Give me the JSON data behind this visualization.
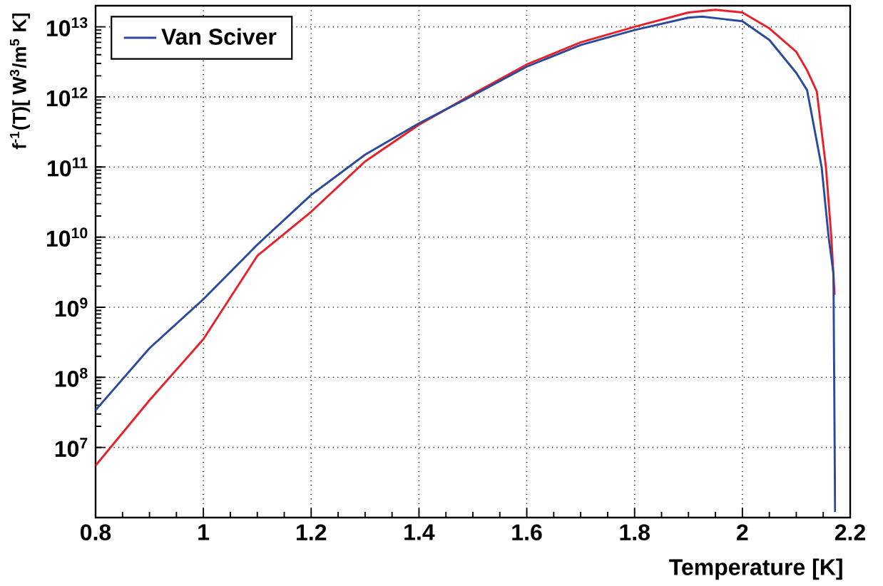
{
  "chart_data": {
    "type": "line",
    "xlabel": "Temperature [K]",
    "ylabel": "f$^{-1}$(T)[ W$^{3}$/m$^{5}$ K]",
    "log": "y",
    "grid": true,
    "legend": "top left",
    "line_style": "solid",
    "marker": "none",
    "xlim": [
      0.8,
      2.2
    ],
    "xticks": [
      0.8,
      1,
      1.2,
      1.4,
      1.6,
      1.8,
      2,
      2.2
    ],
    "ylim": [
      1000000,
      20000000000000
    ],
    "yticks": [
      {
        "value": 10000000,
        "label": "10$^{7}$"
      },
      {
        "value": 100000000,
        "label": "10$^{8}$"
      },
      {
        "value": 1000000000,
        "label": "10$^{9}$"
      },
      {
        "value": 10000000000,
        "label": "10$^{10}$"
      },
      {
        "value": 100000000000,
        "label": "10$^{11}$"
      },
      {
        "value": 1000000000000,
        "label": "10$^{12}$"
      },
      {
        "value": 10000000000000,
        "label": "10$^{13}$"
      }
    ],
    "series": [
      {
        "color": "#e8202a",
        "x": [
          0.8,
          0.9,
          1.0,
          1.1,
          1.2,
          1.3,
          1.4,
          1.5,
          1.6,
          1.7,
          1.8,
          1.9,
          1.95,
          2.0,
          2.05,
          2.1,
          2.12,
          2.138,
          2.155,
          2.165,
          2.171
        ],
        "values": [
          5500000,
          47000000,
          350000000,
          5400000000,
          23000000000,
          120000000000,
          400000000000,
          1100000000000,
          2900000000000,
          6000000000000,
          10000000000000,
          16000000000000,
          17500000000000,
          16000000000000,
          9500000000000,
          4400000000000,
          2400000000000,
          1200000000000,
          100000000000,
          10000000000,
          1500000000
        ]
      },
      {
        "name": "Van Sciver",
        "color": "#2b4a9e",
        "x": [
          0.8,
          0.9,
          1.0,
          1.1,
          1.2,
          1.3,
          1.4,
          1.5,
          1.6,
          1.7,
          1.8,
          1.9,
          1.925,
          2.0,
          2.05,
          2.1,
          2.12,
          2.147,
          2.16,
          2.169,
          2.172
        ],
        "values": [
          34000000,
          260000000,
          1300000000,
          7800000000,
          40000000000,
          150000000000,
          420000000000,
          1050000000000,
          2700000000000,
          5500000000000,
          9000000000000,
          13500000000000,
          14000000000000,
          12000000000000,
          6500000000000,
          2200000000000,
          1250000000000,
          100000000000,
          10000000000,
          3000000000,
          1200000
        ]
      }
    ]
  }
}
